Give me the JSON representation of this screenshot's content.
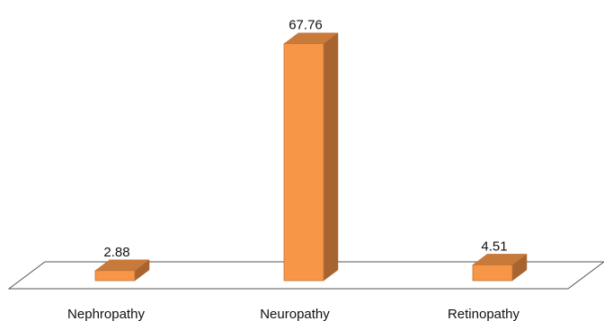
{
  "chart_data": {
    "type": "bar",
    "style": "3d",
    "categories": [
      "Nephropathy",
      "Neuropathy",
      "Retinopathy"
    ],
    "values": [
      2.88,
      67.76,
      4.51
    ],
    "data_labels": [
      "2.88",
      "67.76",
      "4.51"
    ],
    "title": "",
    "xlabel": "",
    "ylabel": "",
    "ylim": [
      0,
      70
    ],
    "grid": false,
    "legend": "none"
  },
  "colors": {
    "bar_front": "#f79646",
    "bar_top": "#c87a3a",
    "bar_side": "#a86430",
    "bar_edge": "#c0723a",
    "floor_stroke": "#555555",
    "text": "#111111"
  }
}
